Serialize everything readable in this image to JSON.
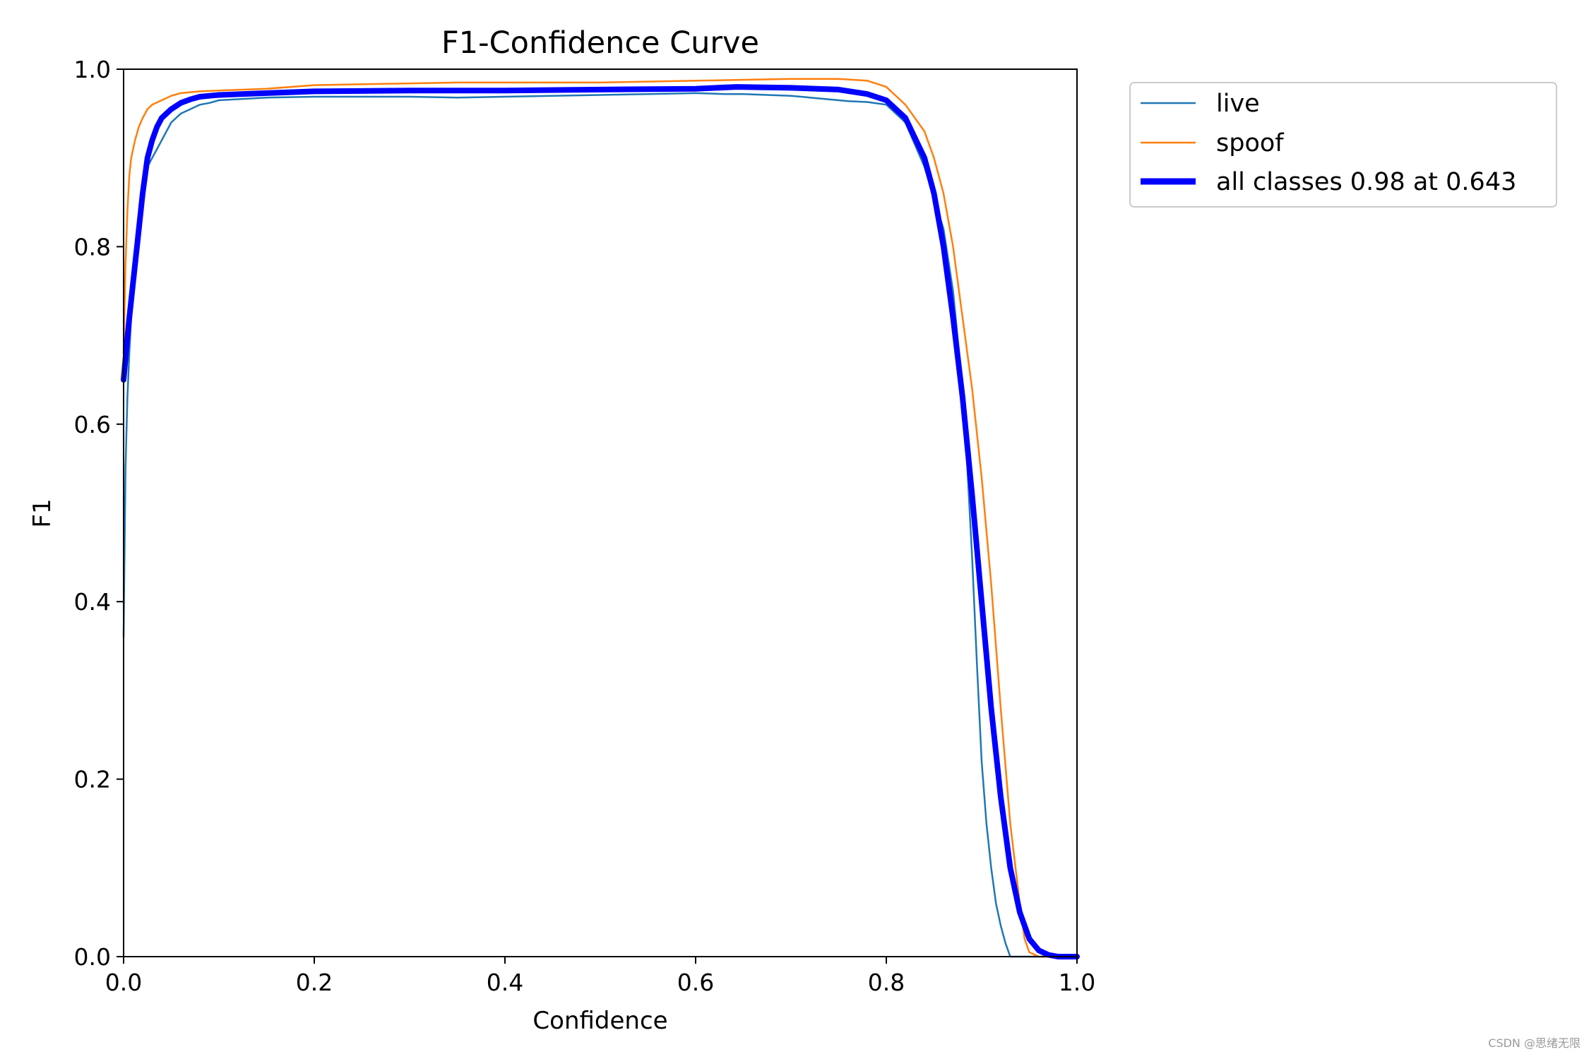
{
  "chart_data": {
    "type": "line",
    "title": "F1-Confidence Curve",
    "xlabel": "Confidence",
    "ylabel": "F1",
    "xlim": [
      0.0,
      1.0
    ],
    "ylim": [
      0.0,
      1.0
    ],
    "xticks": [
      "0.0",
      "0.2",
      "0.4",
      "0.6",
      "0.8",
      "1.0"
    ],
    "yticks": [
      "0.0",
      "0.2",
      "0.4",
      "0.6",
      "0.8",
      "1.0"
    ],
    "grid": false,
    "legend_position": "outside-top-right",
    "series": [
      {
        "name": "live",
        "color": "#1f77b4",
        "x": [
          0.0,
          0.002,
          0.004,
          0.006,
          0.008,
          0.012,
          0.016,
          0.02,
          0.025,
          0.03,
          0.035,
          0.04,
          0.05,
          0.06,
          0.07,
          0.08,
          0.09,
          0.1,
          0.15,
          0.2,
          0.3,
          0.35,
          0.4,
          0.45,
          0.5,
          0.55,
          0.6,
          0.63,
          0.65,
          0.7,
          0.72,
          0.75,
          0.76,
          0.78,
          0.8,
          0.82,
          0.84,
          0.86,
          0.87,
          0.88,
          0.885,
          0.89,
          0.895,
          0.9,
          0.905,
          0.91,
          0.915,
          0.92,
          0.925,
          0.93,
          1.0
        ],
        "y": [
          0.36,
          0.55,
          0.63,
          0.68,
          0.72,
          0.78,
          0.82,
          0.86,
          0.89,
          0.9,
          0.91,
          0.92,
          0.94,
          0.95,
          0.955,
          0.96,
          0.962,
          0.965,
          0.968,
          0.969,
          0.969,
          0.968,
          0.969,
          0.97,
          0.971,
          0.972,
          0.973,
          0.972,
          0.972,
          0.97,
          0.968,
          0.965,
          0.964,
          0.963,
          0.96,
          0.94,
          0.89,
          0.82,
          0.75,
          0.64,
          0.55,
          0.45,
          0.33,
          0.22,
          0.15,
          0.1,
          0.06,
          0.035,
          0.015,
          0.0,
          0.0
        ]
      },
      {
        "name": "spoof",
        "color": "#ff7f0e",
        "x": [
          0.0,
          0.002,
          0.004,
          0.006,
          0.008,
          0.012,
          0.016,
          0.02,
          0.025,
          0.03,
          0.04,
          0.05,
          0.06,
          0.08,
          0.1,
          0.15,
          0.2,
          0.3,
          0.35,
          0.4,
          0.45,
          0.5,
          0.6,
          0.7,
          0.75,
          0.78,
          0.8,
          0.82,
          0.84,
          0.85,
          0.86,
          0.87,
          0.88,
          0.89,
          0.9,
          0.91,
          0.92,
          0.93,
          0.94,
          0.945,
          0.95,
          0.96,
          1.0
        ],
        "y": [
          0.68,
          0.78,
          0.84,
          0.88,
          0.9,
          0.92,
          0.935,
          0.945,
          0.955,
          0.96,
          0.965,
          0.97,
          0.973,
          0.975,
          0.976,
          0.978,
          0.982,
          0.984,
          0.985,
          0.985,
          0.985,
          0.985,
          0.987,
          0.989,
          0.989,
          0.987,
          0.98,
          0.96,
          0.93,
          0.9,
          0.86,
          0.8,
          0.72,
          0.64,
          0.54,
          0.42,
          0.28,
          0.15,
          0.06,
          0.02,
          0.005,
          0.0,
          0.0
        ]
      },
      {
        "name": "all classes 0.98 at 0.643",
        "color": "#0000ff",
        "x": [
          0.0,
          0.005,
          0.01,
          0.015,
          0.02,
          0.025,
          0.03,
          0.035,
          0.04,
          0.05,
          0.06,
          0.07,
          0.08,
          0.09,
          0.1,
          0.15,
          0.2,
          0.3,
          0.4,
          0.5,
          0.6,
          0.643,
          0.7,
          0.75,
          0.78,
          0.8,
          0.82,
          0.84,
          0.85,
          0.86,
          0.87,
          0.88,
          0.89,
          0.9,
          0.91,
          0.92,
          0.93,
          0.94,
          0.95,
          0.96,
          0.97,
          0.98,
          1.0
        ],
        "y": [
          0.65,
          0.71,
          0.76,
          0.81,
          0.86,
          0.9,
          0.92,
          0.935,
          0.945,
          0.955,
          0.962,
          0.966,
          0.969,
          0.97,
          0.971,
          0.973,
          0.975,
          0.976,
          0.976,
          0.977,
          0.978,
          0.98,
          0.979,
          0.977,
          0.972,
          0.965,
          0.945,
          0.9,
          0.86,
          0.8,
          0.72,
          0.63,
          0.52,
          0.4,
          0.28,
          0.18,
          0.1,
          0.05,
          0.02,
          0.007,
          0.002,
          0.0,
          0.0
        ]
      }
    ]
  },
  "watermark": "CSDN @思绪无限"
}
